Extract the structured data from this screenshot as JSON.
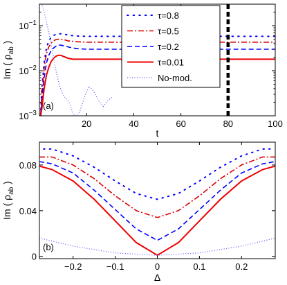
{
  "chart_data": [
    {
      "type": "line",
      "panel_label": "(a)",
      "xlabel": "t",
      "ylabel_main": "Im ( ρ",
      "ylabel_sub": "ab",
      "ylabel_close": " )",
      "xlim": [
        0,
        100
      ],
      "ylim": [
        0.001,
        0.3
      ],
      "yscale": "log",
      "grid": false,
      "x_ticks": [
        20,
        40,
        60,
        80,
        100
      ],
      "x_tick_labels": [
        "20",
        "40",
        "60",
        "80",
        "100"
      ],
      "y_ticks": [
        0.001,
        0.01,
        0.1
      ],
      "y_tick_base": "10",
      "y_tick_exps": [
        "−3",
        "−2",
        "−1"
      ],
      "vertical_marker": {
        "x": 80,
        "style": "thick-dashed",
        "color": "#000000"
      },
      "legend_placement": "top-center",
      "series": [
        {
          "name": "τ=0.8",
          "color": "#0000ff",
          "style": "dotted-sparse",
          "x": [
            0.5,
            1,
            2,
            3,
            4,
            5,
            6,
            7,
            8,
            9,
            10,
            11,
            12,
            14,
            16,
            20,
            30,
            40,
            60,
            80,
            100
          ],
          "y": [
            0.001,
            0.004,
            0.015,
            0.032,
            0.046,
            0.055,
            0.061,
            0.064,
            0.066,
            0.066,
            0.065,
            0.064,
            0.062,
            0.06,
            0.059,
            0.058,
            0.058,
            0.058,
            0.058,
            0.058,
            0.058
          ]
        },
        {
          "name": "τ=0.5",
          "color": "#dd0000",
          "style": "dash-dot",
          "x": [
            0.5,
            1,
            2,
            3,
            4,
            5,
            6,
            7,
            8,
            9,
            10,
            11,
            12,
            14,
            16,
            20,
            30,
            40,
            60,
            80,
            100
          ],
          "y": [
            0.001,
            0.003,
            0.011,
            0.024,
            0.034,
            0.041,
            0.046,
            0.049,
            0.05,
            0.05,
            0.049,
            0.048,
            0.046,
            0.045,
            0.044,
            0.043,
            0.043,
            0.043,
            0.043,
            0.043,
            0.043
          ]
        },
        {
          "name": "τ=0.2",
          "color": "#0000ff",
          "style": "dashed",
          "x": [
            0.5,
            1,
            2,
            3,
            4,
            5,
            6,
            7,
            8,
            9,
            10,
            11,
            12,
            14,
            16,
            20,
            30,
            40,
            60,
            80,
            100
          ],
          "y": [
            0.001,
            0.002,
            0.007,
            0.015,
            0.022,
            0.028,
            0.032,
            0.035,
            0.037,
            0.037,
            0.036,
            0.035,
            0.034,
            0.032,
            0.031,
            0.03,
            0.03,
            0.03,
            0.03,
            0.03,
            0.03
          ]
        },
        {
          "name": "τ=0.01",
          "color": "#ee0000",
          "style": "solid",
          "x": [
            0.5,
            1,
            2,
            3,
            4,
            5,
            6,
            7,
            8,
            9,
            10,
            11,
            12,
            14,
            16,
            20,
            30,
            40,
            60,
            80,
            100
          ],
          "y": [
            0.001,
            0.0014,
            0.004,
            0.008,
            0.012,
            0.016,
            0.019,
            0.021,
            0.022,
            0.022,
            0.021,
            0.02,
            0.019,
            0.018,
            0.018,
            0.018,
            0.018,
            0.018,
            0.018,
            0.018,
            0.018
          ]
        },
        {
          "name": "No-mod.",
          "color": "#5555ff",
          "style": "dotted-dense",
          "x": [
            0.5,
            1,
            1.5,
            2,
            3,
            4,
            5,
            6,
            7,
            8,
            9,
            10,
            11,
            12,
            13,
            14,
            15,
            17,
            19,
            21,
            23,
            25,
            27,
            29,
            31
          ],
          "y": [
            0.3,
            0.3,
            0.25,
            0.2,
            0.12,
            0.07,
            0.04,
            0.02,
            0.01,
            0.006,
            0.004,
            0.003,
            0.0025,
            0.0022,
            0.0018,
            0.0012,
            0.001,
            0.0012,
            0.0025,
            0.0045,
            0.0035,
            0.0022,
            0.0016,
            0.0022,
            0.0026
          ]
        }
      ]
    },
    {
      "type": "line",
      "panel_label": "(b)",
      "xlabel": "Δ",
      "ylabel_main": "Im ( ρ",
      "ylabel_sub": "ab",
      "ylabel_close": " )",
      "xlim": [
        -0.28,
        0.28
      ],
      "ylim": [
        -0.002,
        0.1
      ],
      "yscale": "linear",
      "grid": false,
      "x_ticks": [
        -0.2,
        -0.1,
        0,
        0.1,
        0.2
      ],
      "x_tick_labels": [
        "−0.2",
        "−0.1",
        "0",
        "0.1",
        "0.2"
      ],
      "y_ticks": [
        0,
        0.04,
        0.08
      ],
      "y_tick_labels": [
        "0",
        "0.04",
        "0.08"
      ],
      "series": [
        {
          "name": "τ=0.8",
          "color": "#0000ff",
          "style": "dotted-sparse",
          "x": [
            -0.27,
            -0.25,
            -0.2,
            -0.15,
            -0.1,
            -0.05,
            0,
            0.05,
            0.1,
            0.15,
            0.2,
            0.25,
            0.27
          ],
          "y": [
            0.094,
            0.094,
            0.088,
            0.078,
            0.066,
            0.055,
            0.05,
            0.055,
            0.066,
            0.078,
            0.088,
            0.094,
            0.094
          ]
        },
        {
          "name": "τ=0.5",
          "color": "#dd0000",
          "style": "dash-dot",
          "x": [
            -0.28,
            -0.25,
            -0.2,
            -0.15,
            -0.1,
            -0.05,
            0,
            0.05,
            0.1,
            0.15,
            0.2,
            0.25,
            0.28
          ],
          "y": [
            0.087,
            0.087,
            0.08,
            0.068,
            0.053,
            0.04,
            0.034,
            0.04,
            0.053,
            0.068,
            0.08,
            0.087,
            0.087
          ]
        },
        {
          "name": "τ=0.2",
          "color": "#0000ff",
          "style": "dashed",
          "x": [
            -0.28,
            -0.25,
            -0.2,
            -0.15,
            -0.1,
            -0.05,
            0,
            0.05,
            0.1,
            0.15,
            0.2,
            0.25,
            0.28
          ],
          "y": [
            0.083,
            0.081,
            0.073,
            0.058,
            0.041,
            0.024,
            0.014,
            0.024,
            0.041,
            0.058,
            0.073,
            0.081,
            0.083
          ]
        },
        {
          "name": "τ=0.01",
          "color": "#ee0000",
          "style": "solid",
          "x": [
            -0.28,
            -0.25,
            -0.2,
            -0.15,
            -0.1,
            -0.05,
            0,
            0.05,
            0.1,
            0.15,
            0.2,
            0.25,
            0.28
          ],
          "y": [
            0.079,
            0.076,
            0.066,
            0.05,
            0.031,
            0.012,
            0.001,
            0.012,
            0.031,
            0.05,
            0.066,
            0.076,
            0.079
          ]
        },
        {
          "name": "No-mod.",
          "color": "#5555ff",
          "style": "dotted-dense",
          "x": [
            -0.28,
            -0.2,
            -0.1,
            0,
            0.1,
            0.2,
            0.28
          ],
          "y": [
            0.016,
            0.009,
            0.003,
            0.001,
            0.003,
            0.009,
            0.016
          ]
        }
      ]
    }
  ]
}
